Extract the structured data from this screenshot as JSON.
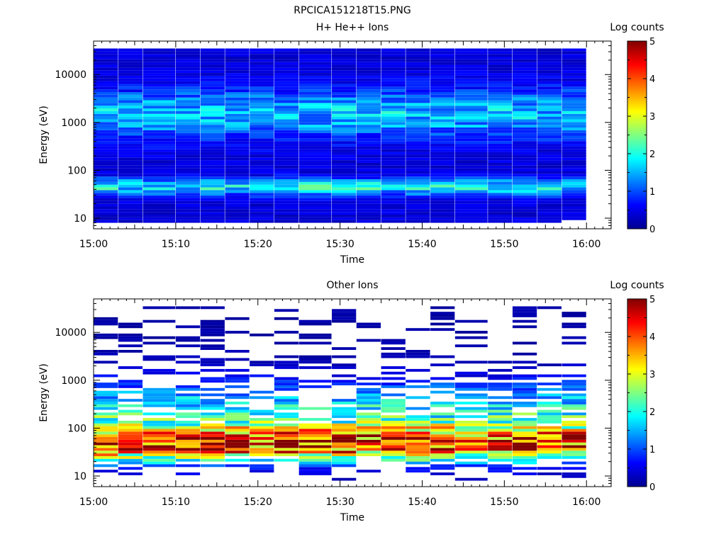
{
  "figure_title": "RPCICA151218T15.PNG",
  "chart_data": [
    {
      "type": "heatmap",
      "title": "H+ He++ Ions",
      "xlabel": "Time",
      "ylabel": "Energy (eV)",
      "yscale": "log",
      "ylim": [
        6,
        50000
      ],
      "xlim": [
        "15:00",
        "16:03"
      ],
      "x_ticks": [
        "15:00",
        "15:10",
        "15:20",
        "15:30",
        "15:40",
        "15:50",
        "16:00"
      ],
      "y_ticks": [
        "10",
        "100",
        "1000",
        "10000"
      ],
      "colorbar": {
        "label": "Log counts",
        "range": [
          0,
          5
        ],
        "ticks": [
          "0",
          "1",
          "2",
          "3",
          "4",
          "5"
        ],
        "colormap": "jet"
      },
      "time_bins": [
        "15:00",
        "15:03",
        "15:06",
        "15:10",
        "15:13",
        "15:16",
        "15:19",
        "15:22",
        "15:25",
        "15:29",
        "15:32",
        "15:35",
        "15:38",
        "15:41",
        "15:44",
        "15:48",
        "15:51",
        "15:54",
        "15:57"
      ],
      "profile": {
        "energy_range_ev": [
          8,
          35000
        ],
        "peaks": [
          {
            "energy_ev": 45,
            "width_decades": 0.12,
            "amplitude": 1.5
          },
          {
            "energy_ev": 1500,
            "width_decades": 0.35,
            "amplitude": 1.2
          }
        ],
        "base_level": 0.45,
        "coverage": 0.88
      }
    },
    {
      "type": "heatmap",
      "title": "Other Ions",
      "xlabel": "Time",
      "ylabel": "Energy (eV)",
      "yscale": "log",
      "ylim": [
        6,
        50000
      ],
      "xlim": [
        "15:00",
        "16:03"
      ],
      "x_ticks": [
        "15:00",
        "15:10",
        "15:20",
        "15:30",
        "15:40",
        "15:50",
        "16:00"
      ],
      "y_ticks": [
        "10",
        "100",
        "1000",
        "10000"
      ],
      "colorbar": {
        "label": "Log counts",
        "range": [
          0,
          5
        ],
        "ticks": [
          "0",
          "1",
          "2",
          "3",
          "4",
          "5"
        ],
        "colormap": "jet"
      },
      "time_bins": [
        "15:00",
        "15:03",
        "15:06",
        "15:10",
        "15:13",
        "15:16",
        "15:19",
        "15:22",
        "15:25",
        "15:29",
        "15:32",
        "15:35",
        "15:38",
        "15:41",
        "15:44",
        "15:48",
        "15:51",
        "15:54",
        "15:57"
      ],
      "profile": {
        "energy_range_ev": [
          8,
          35000
        ],
        "peaks": [
          {
            "energy_ev": 45,
            "width_decades": 0.25,
            "amplitude": 3.8
          },
          {
            "energy_ev": 200,
            "width_decades": 0.45,
            "amplitude": 1.8
          }
        ],
        "base_level": 0.2,
        "coverage": 0.22
      }
    }
  ]
}
